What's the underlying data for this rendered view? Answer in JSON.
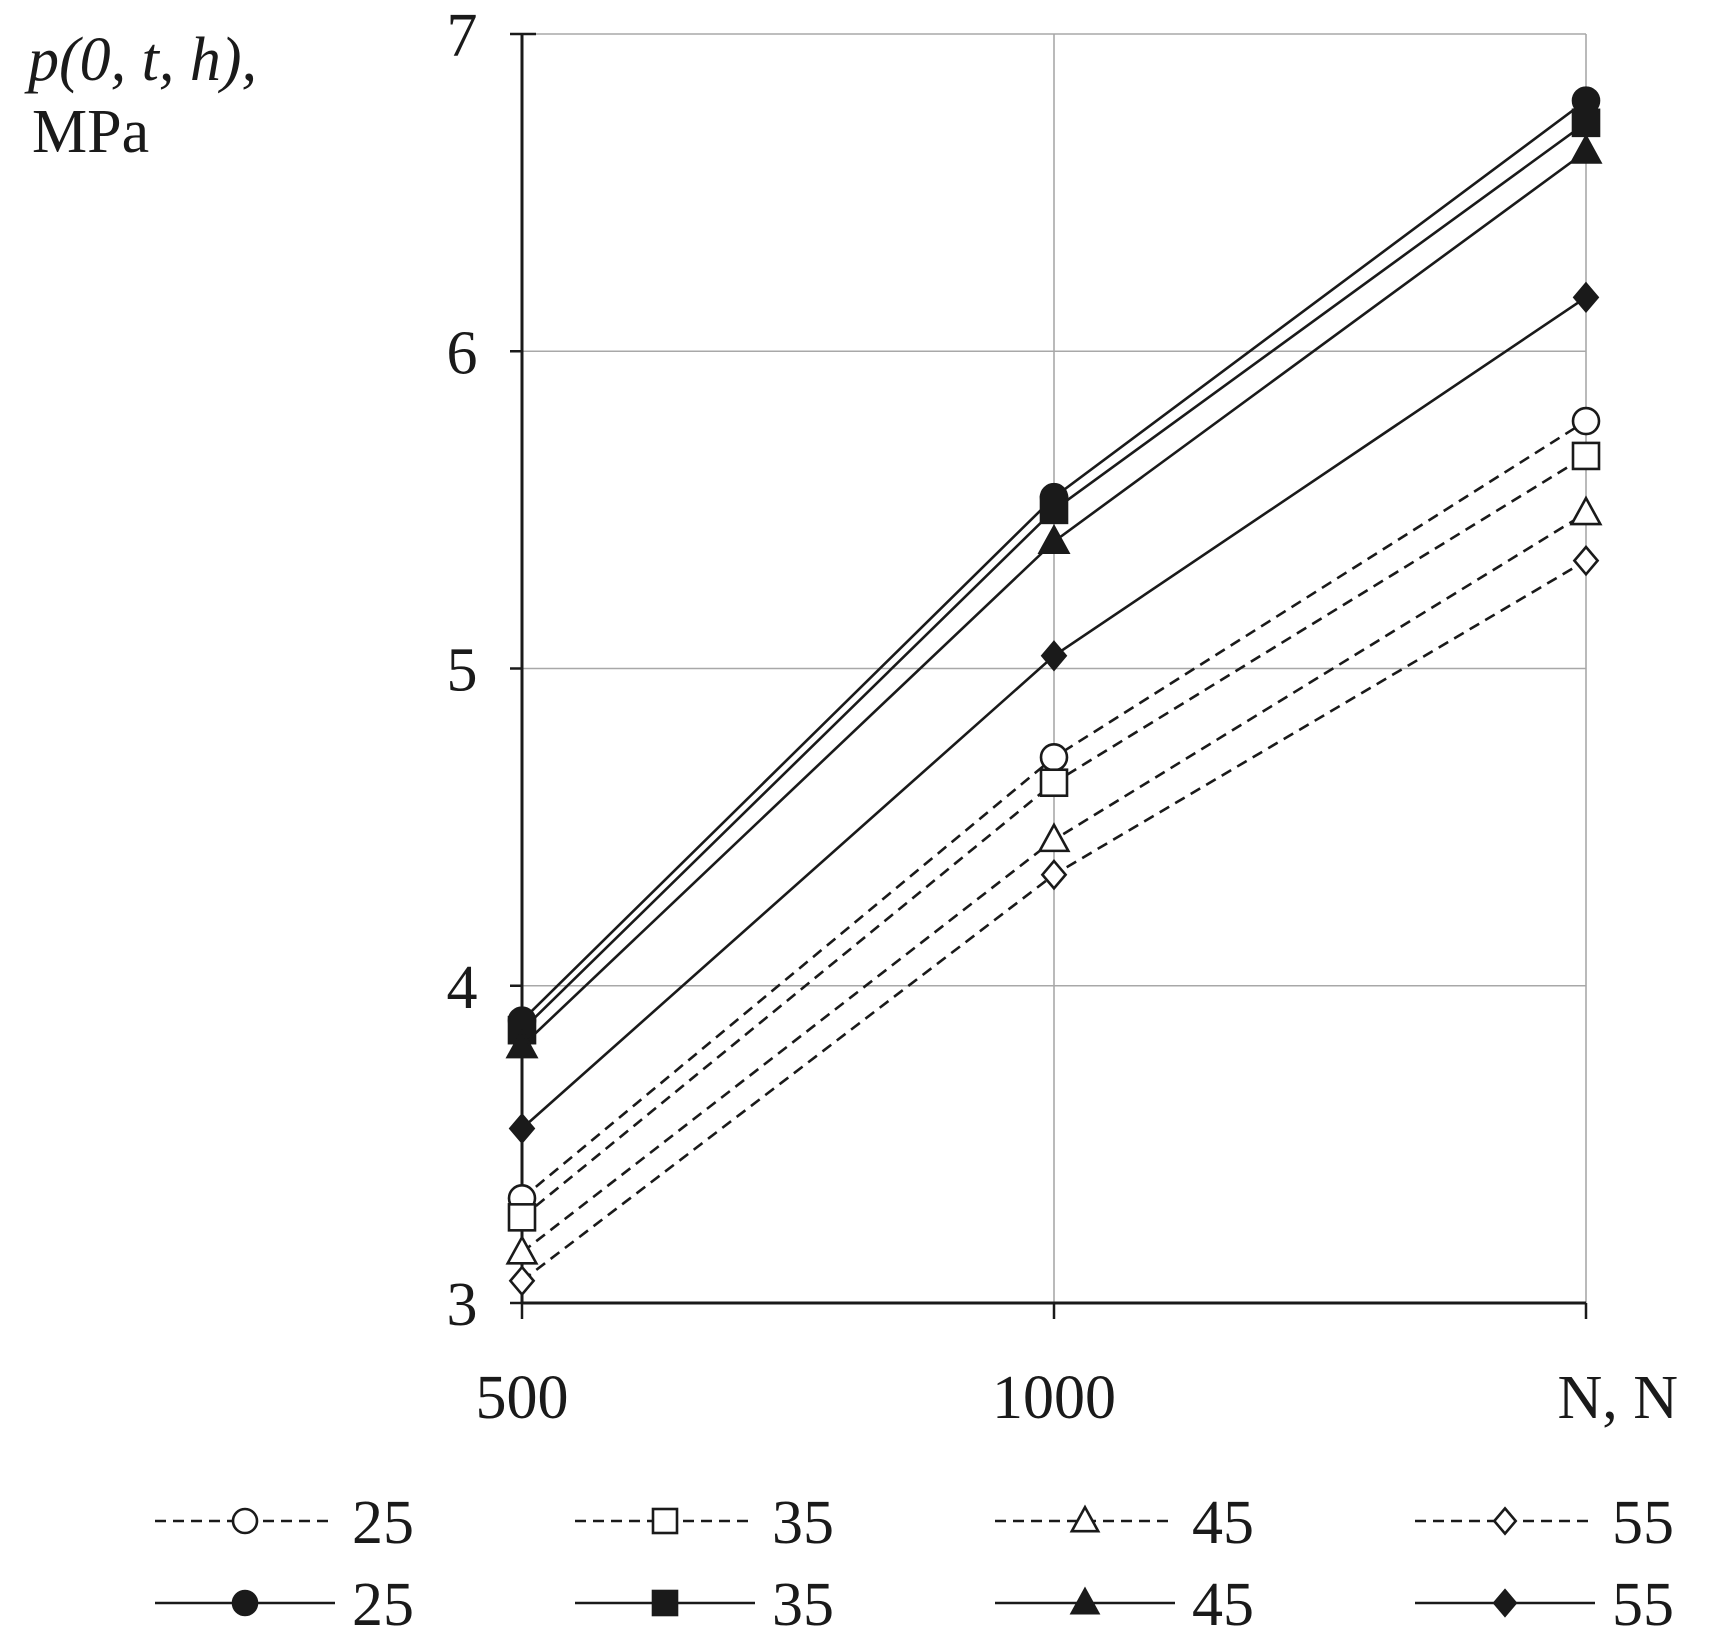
{
  "chart_data": {
    "type": "line",
    "ylabel_line1": "p(0, t, h),",
    "ylabel_line2": "MPa",
    "xlabel": "N, N",
    "x_ticks": [
      "500",
      "1000"
    ],
    "y_ticks": [
      "3",
      "4",
      "5",
      "6",
      "7"
    ],
    "xlim": [
      500,
      1500
    ],
    "ylim": [
      3,
      7
    ],
    "grid": true,
    "legend_position": "bottom",
    "x": [
      500,
      1000,
      1500
    ],
    "series": [
      {
        "name": "25",
        "style": "dashed",
        "marker": "circle",
        "filled": false,
        "values": [
          3.33,
          4.72,
          5.78
        ]
      },
      {
        "name": "35",
        "style": "dashed",
        "marker": "square",
        "filled": false,
        "values": [
          3.27,
          4.64,
          5.67
        ]
      },
      {
        "name": "45",
        "style": "dashed",
        "marker": "triangle",
        "filled": false,
        "values": [
          3.16,
          4.46,
          5.49
        ]
      },
      {
        "name": "55",
        "style": "dashed",
        "marker": "diamond",
        "filled": false,
        "values": [
          3.07,
          4.35,
          5.34
        ]
      },
      {
        "name": "25",
        "style": "solid",
        "marker": "circle",
        "filled": true,
        "values": [
          3.89,
          5.54,
          6.79
        ]
      },
      {
        "name": "35",
        "style": "solid",
        "marker": "square",
        "filled": true,
        "values": [
          3.86,
          5.5,
          6.72
        ]
      },
      {
        "name": "45",
        "style": "solid",
        "marker": "triangle",
        "filled": true,
        "values": [
          3.81,
          5.4,
          6.63
        ]
      },
      {
        "name": "55",
        "style": "solid",
        "marker": "diamond",
        "filled": true,
        "values": [
          3.55,
          5.04,
          6.17
        ]
      }
    ]
  }
}
